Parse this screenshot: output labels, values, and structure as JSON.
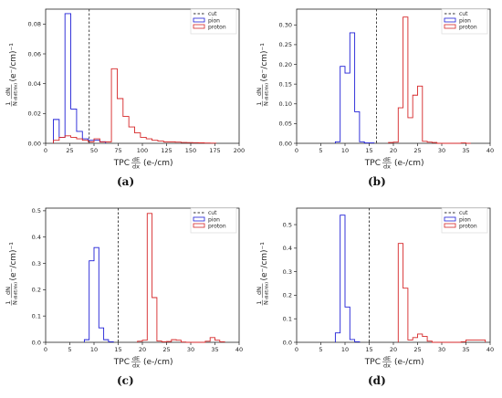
{
  "legend": {
    "cut": "cut",
    "pion": "pion",
    "proton": "proton"
  },
  "colors": {
    "pion": "#1f1fd6",
    "proton": "#d62728",
    "cut": "#333333",
    "axis": "#222222"
  },
  "xlabel": "TPC dE/dx (e-/cm)",
  "xlabel_parts": {
    "prefix": "TPC",
    "frac_num": "dE",
    "frac_den": "dx",
    "suffix": "(e-/cm)"
  },
  "ylabel": "1/N dN/d(dE/dx) (e⁻/cm)⁻¹",
  "ylabel_parts": {
    "pre": "1",
    "pre_den": "N",
    "num": "dN",
    "den": "d(dE/dx)",
    "units": "(e⁻/cm)⁻¹"
  },
  "chart_data": [
    {
      "type": "histogram",
      "caption": "(a)",
      "xlim": [
        0,
        200
      ],
      "ylim": [
        0,
        0.09
      ],
      "xticks": [
        "0",
        "25",
        "50",
        "75",
        "100",
        "125",
        "150",
        "175",
        "200"
      ],
      "yticks": [
        "0.00",
        "0.02",
        "0.04",
        "0.06",
        "0.08"
      ],
      "cut": 45,
      "series": [
        {
          "name": "pion",
          "edges": [
            8,
            14,
            20,
            26,
            32,
            38,
            44,
            50,
            56,
            62
          ],
          "values": [
            0.016,
            0.004,
            0.087,
            0.023,
            0.008,
            0.003,
            0.002,
            0.002,
            0.001
          ]
        },
        {
          "name": "proton",
          "edges": [
            8,
            14,
            20,
            26,
            32,
            38,
            44,
            50,
            56,
            62,
            68,
            74,
            80,
            86,
            92,
            98,
            104,
            110,
            116,
            122,
            128,
            134,
            140,
            146,
            152,
            158,
            164,
            170,
            176
          ],
          "values": [
            0.002,
            0.004,
            0.005,
            0.004,
            0.003,
            0.002,
            0.001,
            0.003,
            0.001,
            0.001,
            0.05,
            0.03,
            0.018,
            0.011,
            0.007,
            0.004,
            0.003,
            0.002,
            0.0015,
            0.001,
            0.001,
            0.0008,
            0.0006,
            0.0005,
            0.0004,
            0.0003,
            0.0002,
            0.0001
          ]
        }
      ]
    },
    {
      "type": "histogram",
      "caption": "(b)",
      "xlim": [
        0,
        40
      ],
      "ylim": [
        0,
        0.34
      ],
      "xticks": [
        "0",
        "5",
        "10",
        "15",
        "20",
        "25",
        "30",
        "35",
        "40"
      ],
      "yticks": [
        "0.00",
        "0.05",
        "0.10",
        "0.15",
        "0.20",
        "0.25",
        "0.30"
      ],
      "cut": 16.5,
      "series": [
        {
          "name": "pion",
          "edges": [
            8,
            9,
            10,
            11,
            12,
            13,
            14,
            15,
            16
          ],
          "values": [
            0.004,
            0.195,
            0.178,
            0.28,
            0.08,
            0.004,
            0.001,
            0.001
          ]
        },
        {
          "name": "proton",
          "edges": [
            19,
            20,
            21,
            22,
            23,
            24,
            25,
            26,
            27,
            28,
            29,
            30,
            31,
            32,
            33,
            34,
            35,
            36
          ],
          "values": [
            0.002,
            0.003,
            0.09,
            0.32,
            0.065,
            0.122,
            0.145,
            0.005,
            0.003,
            0.002,
            0.0,
            0.0,
            0.0,
            0.0,
            0.0,
            0.001,
            0.0
          ]
        }
      ]
    },
    {
      "type": "histogram",
      "caption": "(c)",
      "xlim": [
        0,
        40
      ],
      "ylim": [
        0,
        0.51
      ],
      "xticks": [
        "0",
        "5",
        "10",
        "15",
        "20",
        "25",
        "30",
        "35",
        "40"
      ],
      "yticks": [
        "0.0",
        "0.1",
        "0.2",
        "0.3",
        "0.4",
        "0.5"
      ],
      "cut": 15,
      "series": [
        {
          "name": "pion",
          "edges": [
            8,
            9,
            10,
            11,
            12,
            13,
            14
          ],
          "values": [
            0.01,
            0.31,
            0.36,
            0.055,
            0.01,
            0.002
          ]
        },
        {
          "name": "proton",
          "edges": [
            19,
            20,
            21,
            22,
            23,
            24,
            25,
            26,
            27,
            28,
            29,
            30,
            31,
            32,
            33,
            34,
            35,
            36,
            37
          ],
          "values": [
            0.004,
            0.008,
            0.49,
            0.17,
            0.005,
            0.002,
            0.003,
            0.01,
            0.008,
            0.001,
            0.0,
            0.0,
            0.0,
            0.0,
            0.004,
            0.018,
            0.008,
            0.002
          ]
        }
      ]
    },
    {
      "type": "histogram",
      "caption": "(d)",
      "xlim": [
        0,
        40
      ],
      "ylim": [
        0,
        0.57
      ],
      "xticks": [
        "0",
        "5",
        "10",
        "15",
        "20",
        "25",
        "30",
        "35",
        "40"
      ],
      "yticks": [
        "0.0",
        "0.1",
        "0.2",
        "0.3",
        "0.4",
        "0.5"
      ],
      "cut": 15,
      "series": [
        {
          "name": "pion",
          "edges": [
            8,
            9,
            10,
            11,
            12,
            13
          ],
          "values": [
            0.04,
            0.54,
            0.15,
            0.012,
            0.002
          ]
        },
        {
          "name": "proton",
          "edges": [
            21,
            22,
            23,
            24,
            25,
            26,
            27,
            28,
            29,
            30,
            31,
            32,
            33,
            34,
            35,
            36,
            37,
            38,
            39
          ],
          "values": [
            0.42,
            0.23,
            0.01,
            0.02,
            0.035,
            0.025,
            0.005,
            0.0,
            0.0,
            0.0,
            0.0,
            0.0,
            0.0,
            0.002,
            0.01,
            0.01,
            0.01,
            0.01
          ]
        }
      ]
    }
  ]
}
